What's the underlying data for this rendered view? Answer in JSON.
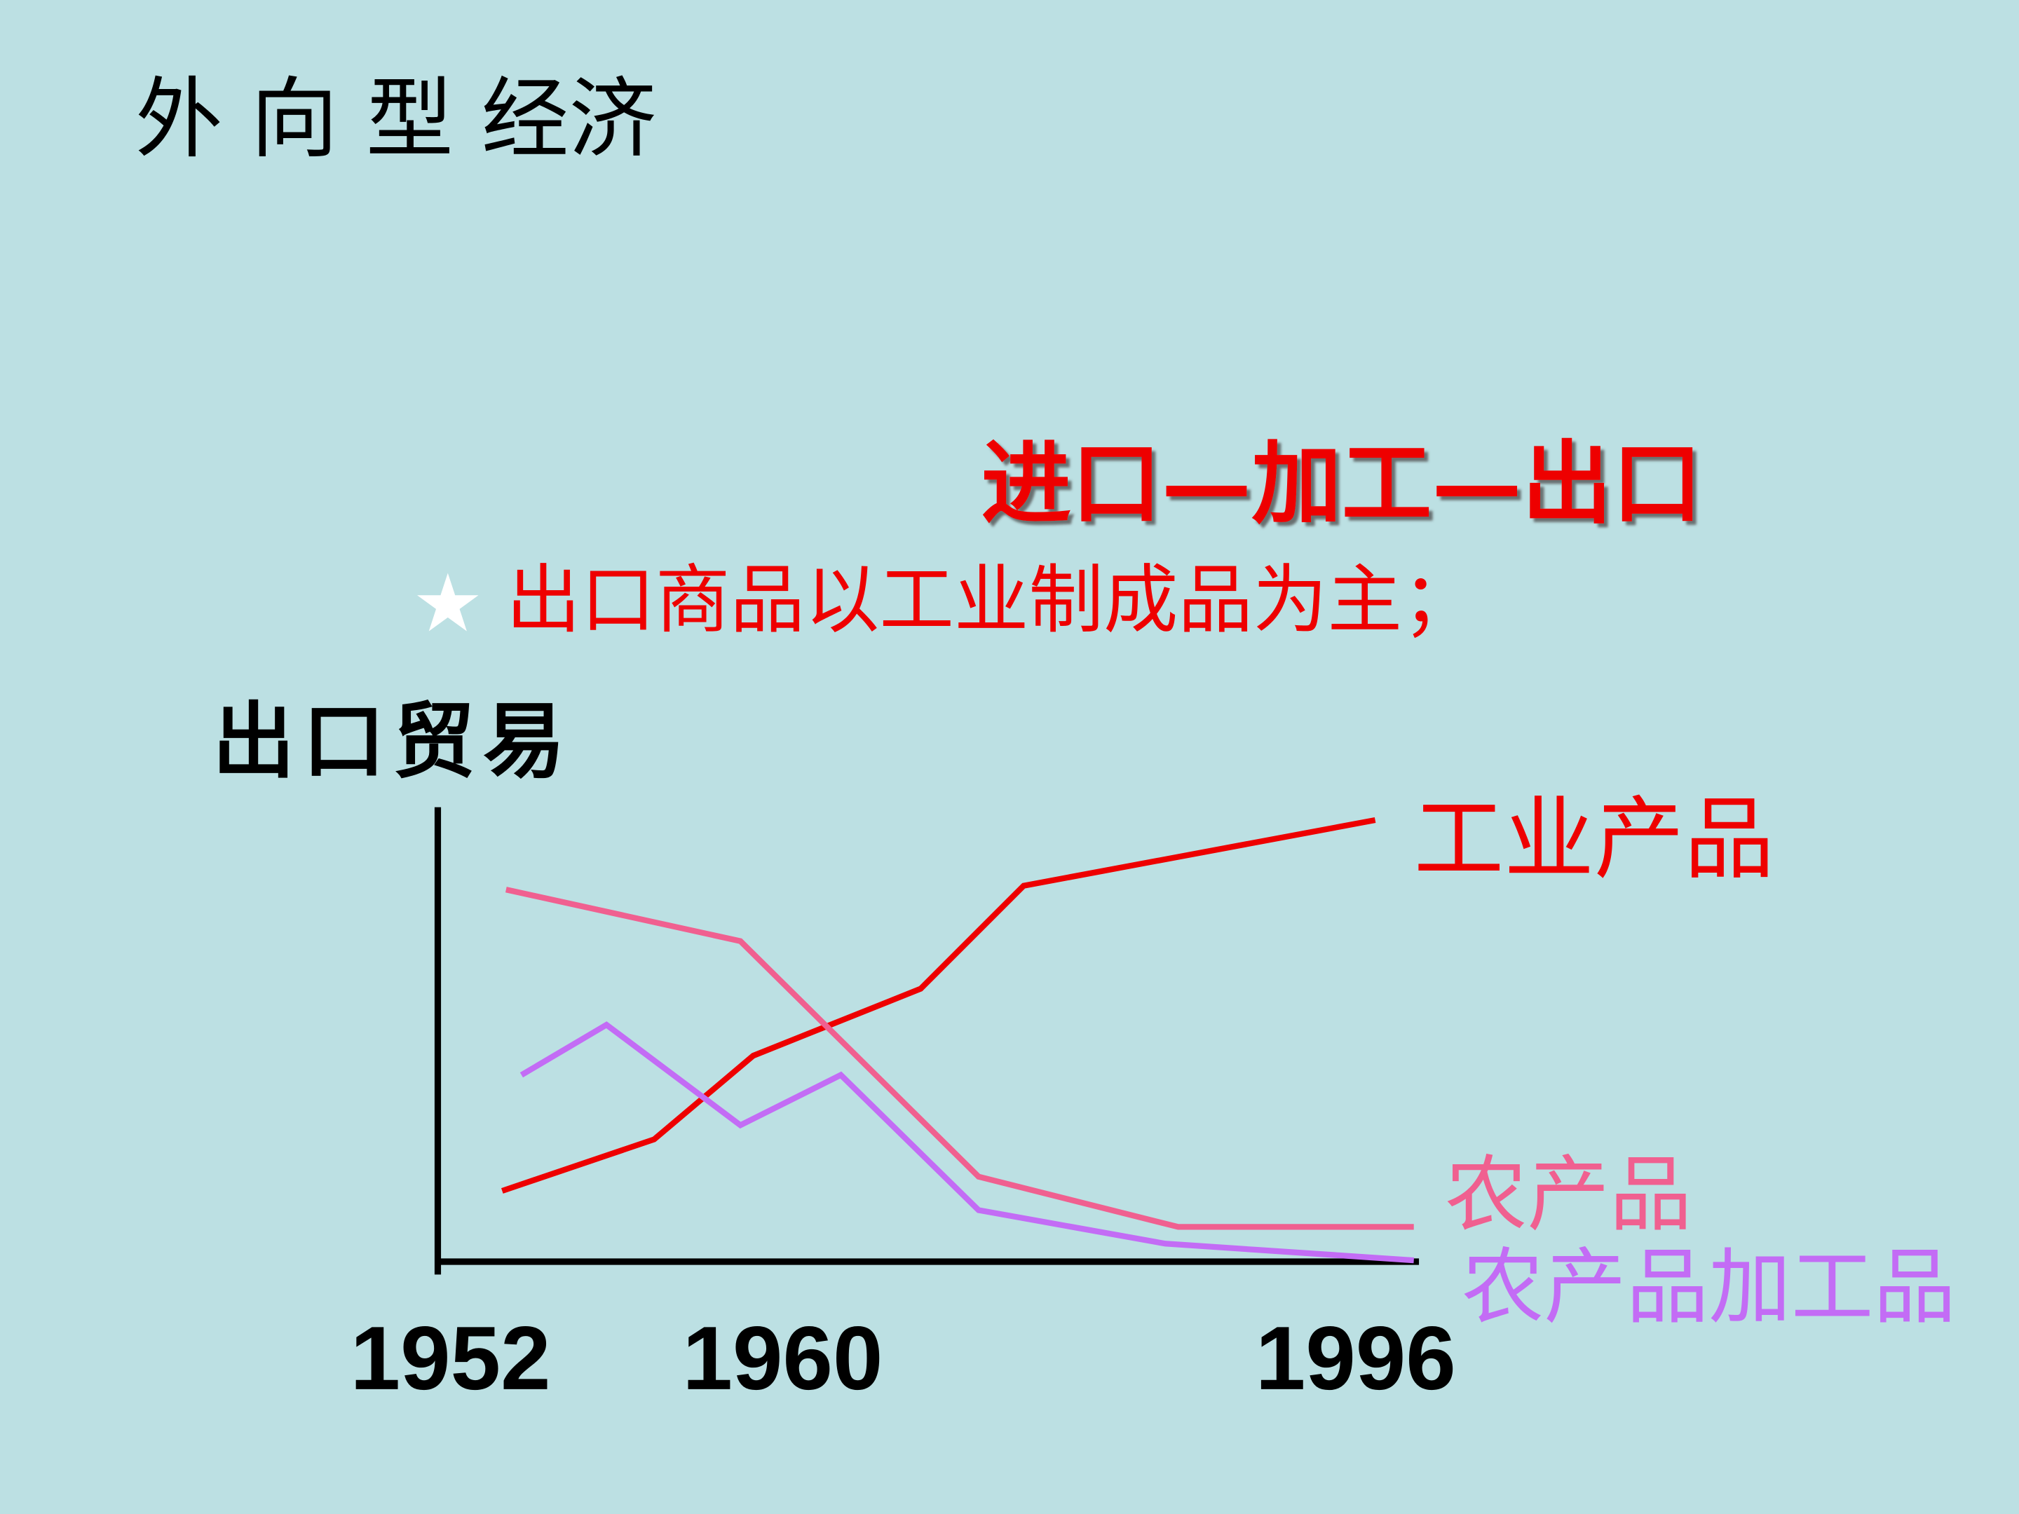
{
  "title": "外 向 型 经济",
  "headline": "进口—加工—出口",
  "bullet": {
    "symbol": "★",
    "text": "出口商品以工业制成品为主；"
  },
  "diagram": {
    "y_label": "出口贸易",
    "x_labels": [
      "1952",
      "1960",
      "1996"
    ],
    "line_labels": [
      "工业产品",
      "农产品",
      "农产品加工品"
    ]
  }
}
